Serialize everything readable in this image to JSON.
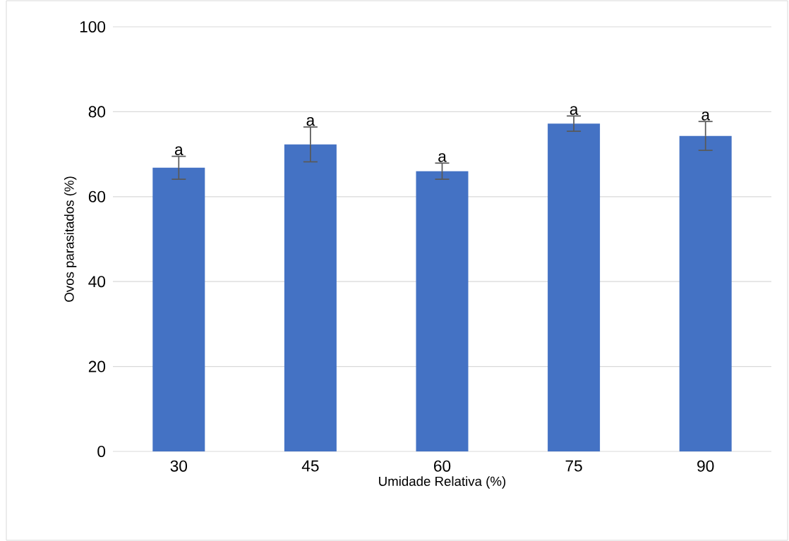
{
  "chart_data": {
    "type": "bar",
    "xlabel": "Umidade Relativa (%)",
    "ylabel": "Ovos parasitados (%)",
    "categories": [
      "30",
      "45",
      "60",
      "75",
      "90"
    ],
    "values": [
      66.8,
      72.3,
      66.0,
      77.2,
      74.3
    ],
    "errors": [
      2.7,
      4.1,
      1.9,
      1.8,
      3.4
    ],
    "color": "#4472c4",
    "ylim": [
      0,
      100
    ],
    "yticks": [
      0,
      20,
      40,
      60,
      80,
      100
    ],
    "grid": "y",
    "annotations": [
      {
        "text": "a",
        "x": "30",
        "y": 66.8
      },
      {
        "text": "a",
        "x": "45",
        "y": 72.3
      },
      {
        "text": "a",
        "x": "60",
        "y": 66.0
      },
      {
        "text": "a",
        "x": "75",
        "y": 77.2
      },
      {
        "text": "a",
        "x": "90",
        "y": 74.3
      }
    ]
  }
}
